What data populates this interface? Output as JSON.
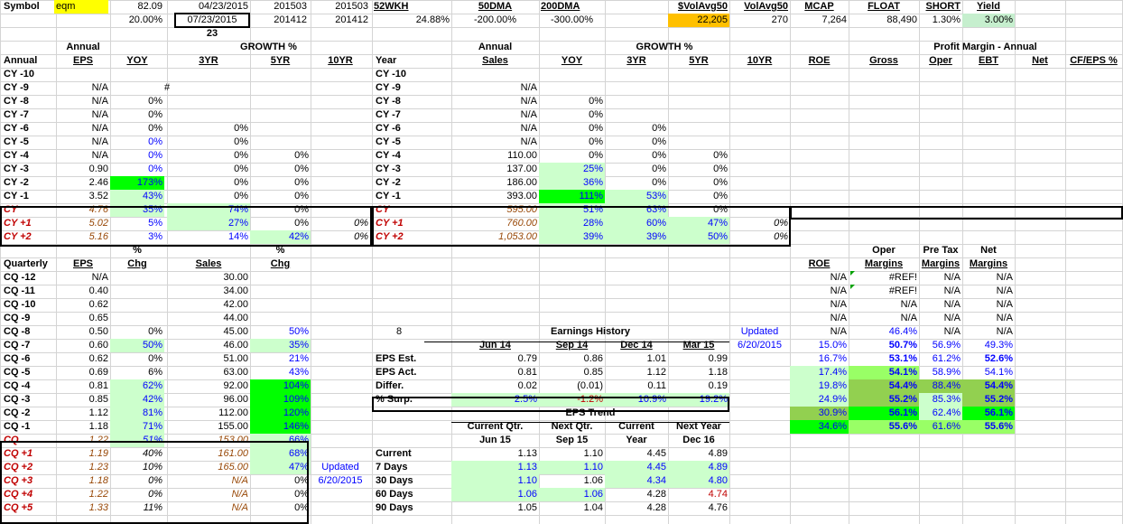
{
  "window": {
    "title": "Stock analysis worksheet"
  },
  "colors": {
    "light_green": "#ccffcc",
    "bright_green": "#00ff00",
    "mid_green": "#92d050",
    "yellow": "#ffff00",
    "orange": "#ffc000",
    "blue_text": "#0000ff",
    "red_text": "#c00000",
    "brown_text": "#984807"
  },
  "header": {
    "symbol_label": "Symbol",
    "symbol_value": "eqm",
    "price": "82.09",
    "date1": "04/23/2015",
    "p1": "201503",
    "p2": "201503",
    "h52wk": "52WKH",
    "h50dma": "50DMA",
    "h200dma": "200DMA",
    "hvolavg": "$VolAvg50",
    "hvolavg2": "VolAvg50",
    "hmcap": "MCAP",
    "hfloat": "FLOAT",
    "hshort": "SHORT",
    "hyield": "Yield",
    "r2pct": "20.00%",
    "date2": "07/23/2015",
    "p3": "201412",
    "p4": "201412",
    "v52wk": "24.88%",
    "v50dma": "-200.00%",
    "v200dma": "-300.00%",
    "vvolavg": "22,205",
    "vvolavg2": "270",
    "vmcap": "7,264",
    "vfloat": "88,490",
    "vshort": "1.30%",
    "vyield": "3.00%",
    "n23": "23"
  },
  "annual_eps": {
    "h_annual": "Annual",
    "h_growth": "GROWTH %",
    "h_col": "Annual",
    "h_eps": "EPS",
    "h_yoy": "YOY",
    "h_3yr": "3YR",
    "h_5yr": "5YR",
    "h_10yr": "10YR",
    "hash": "#",
    "rows": [
      {
        "label": "CY -10",
        "eps": "",
        "yoy": "",
        "y3": "",
        "y5": "",
        "y10": ""
      },
      {
        "label": "CY -9",
        "eps": "N/A",
        "yoy": "",
        "y3": "",
        "y5": "",
        "y10": ""
      },
      {
        "label": "CY -8",
        "eps": "N/A",
        "yoy": "0%",
        "y3": "",
        "y5": "",
        "y10": ""
      },
      {
        "label": "CY -7",
        "eps": "N/A",
        "yoy": "0%",
        "y3": "",
        "y5": "",
        "y10": ""
      },
      {
        "label": "CY -6",
        "eps": "N/A",
        "yoy": "0%",
        "y3": "0%",
        "y5": "",
        "y10": ""
      },
      {
        "label": "CY -5",
        "eps": "N/A",
        "yoy": "0%",
        "y3": "0%",
        "y5": "",
        "y10": ""
      },
      {
        "label": "CY -4",
        "eps": "N/A",
        "yoy": "0%",
        "y3": "0%",
        "y5": "0%",
        "y10": ""
      },
      {
        "label": "CY -3",
        "eps": "0.90",
        "yoy": "0%",
        "y3": "0%",
        "y5": "0%",
        "y10": ""
      },
      {
        "label": "CY -2",
        "eps": "2.46",
        "yoy": "173%",
        "y3": "0%",
        "y5": "0%",
        "y10": ""
      },
      {
        "label": "CY -1",
        "eps": "3.52",
        "yoy": "43%",
        "y3": "0%",
        "y5": "0%",
        "y10": ""
      },
      {
        "label": "CY",
        "eps": "4.76",
        "yoy": "35%",
        "y3": "74%",
        "y5": "0%",
        "y10": ""
      },
      {
        "label": "CY +1",
        "eps": "5.02",
        "yoy": "5%",
        "y3": "27%",
        "y5": "0%",
        "y10": "0%"
      },
      {
        "label": "CY +2",
        "eps": "5.16",
        "yoy": "3%",
        "y3": "14%",
        "y5": "42%",
        "y10": "0%"
      }
    ]
  },
  "annual_sales": {
    "h_annual": "Annual",
    "h_growth": "GROWTH %",
    "h_year": "Year",
    "h_sales": "Sales",
    "h_yoy": "YOY",
    "h_3yr": "3YR",
    "h_5yr": "5YR",
    "h_10yr": "10YR",
    "rows": [
      {
        "label": "CY -10",
        "sales": "",
        "yoy": "",
        "y3": "",
        "y5": "",
        "y10": ""
      },
      {
        "label": "CY -9",
        "sales": "N/A",
        "yoy": "",
        "y3": "",
        "y5": "",
        "y10": ""
      },
      {
        "label": "CY -8",
        "sales": "N/A",
        "yoy": "0%",
        "y3": "",
        "y5": "",
        "y10": ""
      },
      {
        "label": "CY -7",
        "sales": "N/A",
        "yoy": "0%",
        "y3": "",
        "y5": "",
        "y10": ""
      },
      {
        "label": "CY -6",
        "sales": "N/A",
        "yoy": "0%",
        "y3": "0%",
        "y5": "",
        "y10": ""
      },
      {
        "label": "CY -5",
        "sales": "N/A",
        "yoy": "0%",
        "y3": "0%",
        "y5": "",
        "y10": ""
      },
      {
        "label": "CY -4",
        "sales": "110.00",
        "yoy": "0%",
        "y3": "0%",
        "y5": "0%",
        "y10": ""
      },
      {
        "label": "CY -3",
        "sales": "137.00",
        "yoy": "25%",
        "y3": "0%",
        "y5": "0%",
        "y10": ""
      },
      {
        "label": "CY -2",
        "sales": "186.00",
        "yoy": "36%",
        "y3": "0%",
        "y5": "0%",
        "y10": ""
      },
      {
        "label": "CY -1",
        "sales": "393.00",
        "yoy": "111%",
        "y3": "53%",
        "y5": "0%",
        "y10": ""
      },
      {
        "label": "CY",
        "sales": "595.00",
        "yoy": "51%",
        "y3": "63%",
        "y5": "0%",
        "y10": ""
      },
      {
        "label": "CY +1",
        "sales": "760.00",
        "yoy": "28%",
        "y3": "60%",
        "y5": "47%",
        "y10": "0%"
      },
      {
        "label": "CY +2",
        "sales": "1,053.00",
        "yoy": "39%",
        "y3": "39%",
        "y5": "50%",
        "y10": "0%"
      }
    ]
  },
  "profit_margin": {
    "title": "Profit Margin - Annual",
    "h_roe": "ROE",
    "h_gross": "Gross",
    "h_oper": "Oper",
    "h_ebt": "EBT",
    "h_net": "Net",
    "h_cfeps": "CF/EPS %"
  },
  "quarterly": {
    "h_pct1": "%",
    "h_pct2": "%",
    "h_quarterly": "Quarterly",
    "h_eps": "EPS",
    "h_chg": "Chg",
    "h_sales": "Sales",
    "h_chg2": "Chg",
    "rows": [
      {
        "label": "CQ -12",
        "eps": "N/A",
        "chg": "",
        "sales": "30.00",
        "schg": ""
      },
      {
        "label": "CQ -11",
        "eps": "0.40",
        "chg": "",
        "sales": "34.00",
        "schg": ""
      },
      {
        "label": "CQ -10",
        "eps": "0.62",
        "chg": "",
        "sales": "42.00",
        "schg": ""
      },
      {
        "label": "CQ -9",
        "eps": "0.65",
        "chg": "",
        "sales": "44.00",
        "schg": ""
      },
      {
        "label": "CQ -8",
        "eps": "0.50",
        "chg": "0%",
        "sales": "45.00",
        "schg": "50%"
      },
      {
        "label": "CQ -7",
        "eps": "0.60",
        "chg": "50%",
        "sales": "46.00",
        "schg": "35%"
      },
      {
        "label": "CQ -6",
        "eps": "0.62",
        "chg": "0%",
        "sales": "51.00",
        "schg": "21%"
      },
      {
        "label": "CQ -5",
        "eps": "0.69",
        "chg": "6%",
        "sales": "63.00",
        "schg": "43%"
      },
      {
        "label": "CQ -4",
        "eps": "0.81",
        "chg": "62%",
        "sales": "92.00",
        "schg": "104%"
      },
      {
        "label": "CQ -3",
        "eps": "0.85",
        "chg": "42%",
        "sales": "96.00",
        "schg": "109%"
      },
      {
        "label": "CQ -2",
        "eps": "1.12",
        "chg": "81%",
        "sales": "112.00",
        "schg": "120%"
      },
      {
        "label": "CQ -1",
        "eps": "1.18",
        "chg": "71%",
        "sales": "155.00",
        "schg": "146%"
      },
      {
        "label": "CQ",
        "eps": "1.22",
        "chg": "51%",
        "sales": "153.00",
        "schg": "66%"
      },
      {
        "label": "CQ +1",
        "eps": "1.19",
        "chg": "40%",
        "sales": "161.00",
        "schg": "68%"
      },
      {
        "label": "CQ +2",
        "eps": "1.23",
        "chg": "10%",
        "sales": "165.00",
        "schg": "47%"
      },
      {
        "label": "CQ +3",
        "eps": "1.18",
        "chg": "0%",
        "sales": "N/A",
        "schg": "0%"
      },
      {
        "label": "CQ +4",
        "eps": "1.22",
        "chg": "0%",
        "sales": "N/A",
        "schg": "0%"
      },
      {
        "label": "CQ +5",
        "eps": "1.33",
        "chg": "11%",
        "sales": "N/A",
        "schg": "0%"
      }
    ],
    "updated_label": "Updated",
    "updated_date": "6/20/2015"
  },
  "earnings_history": {
    "count": "8",
    "title": "Earnings History",
    "cols": [
      "Jun 14",
      "Sep 14",
      "Dec 14",
      "Mar 15"
    ],
    "rows": [
      {
        "label": "EPS Est.",
        "v": [
          "0.79",
          "0.86",
          "1.01",
          "0.99"
        ]
      },
      {
        "label": "EPS Act.",
        "v": [
          "0.81",
          "0.85",
          "1.12",
          "1.18"
        ]
      },
      {
        "label": "Differ.",
        "v": [
          "0.02",
          "(0.01)",
          "0.11",
          "0.19"
        ]
      },
      {
        "label": "% Surp.",
        "v": [
          "2.5%",
          "-1.2%",
          "10.9%",
          "19.2%"
        ]
      }
    ],
    "updated_label": "Updated",
    "updated_date": "6/20/2015"
  },
  "eps_trend": {
    "title": "EPS Trend",
    "h1a": "Current Qtr.",
    "h2a": "Next Qtr.",
    "h3a": "Current",
    "h4a": "Next Year",
    "h1b": "Jun 15",
    "h2b": "Sep 15",
    "h3b": "Year",
    "h4b": "Dec 16",
    "rows": [
      {
        "label": "Current",
        "v": [
          "1.13",
          "1.10",
          "4.45",
          "4.89"
        ]
      },
      {
        "label": "7 Days",
        "v": [
          "1.13",
          "1.10",
          "4.45",
          "4.89"
        ]
      },
      {
        "label": "30 Days",
        "v": [
          "1.10",
          "1.06",
          "4.34",
          "4.80"
        ]
      },
      {
        "label": "60 Days",
        "v": [
          "1.06",
          "1.06",
          "4.28",
          "4.74"
        ]
      },
      {
        "label": "90 Days",
        "v": [
          "1.05",
          "1.04",
          "4.28",
          "4.76"
        ]
      }
    ]
  },
  "margins": {
    "h_oper1": "Oper",
    "h_pretax1": "Pre Tax",
    "h_net1": "Net",
    "h_roe": "ROE",
    "h_oper2": "Margins",
    "h_pretax2": "Margins",
    "h_net2": "Margins",
    "rows": [
      {
        "roe": "N/A",
        "oper": "#REF!",
        "pretax": "N/A",
        "net": "N/A"
      },
      {
        "roe": "N/A",
        "oper": "#REF!",
        "pretax": "N/A",
        "net": "N/A"
      },
      {
        "roe": "N/A",
        "oper": "N/A",
        "pretax": "N/A",
        "net": "N/A"
      },
      {
        "roe": "N/A",
        "oper": "N/A",
        "pretax": "N/A",
        "net": "N/A"
      },
      {
        "roe": "N/A",
        "oper": "46.4%",
        "pretax": "N/A",
        "net": "N/A"
      },
      {
        "roe": "15.0%",
        "oper": "50.7%",
        "pretax": "56.9%",
        "net": "49.3%"
      },
      {
        "roe": "16.7%",
        "oper": "53.1%",
        "pretax": "61.2%",
        "net": "52.6%"
      },
      {
        "roe": "17.4%",
        "oper": "54.1%",
        "pretax": "58.9%",
        "net": "54.1%"
      },
      {
        "roe": "19.8%",
        "oper": "54.4%",
        "pretax": "88.4%",
        "net": "54.4%"
      },
      {
        "roe": "24.9%",
        "oper": "55.2%",
        "pretax": "85.3%",
        "net": "55.2%"
      },
      {
        "roe": "30.9%",
        "oper": "56.1%",
        "pretax": "62.4%",
        "net": "56.1%"
      },
      {
        "roe": "34.6%",
        "oper": "55.6%",
        "pretax": "61.6%",
        "net": "55.6%"
      }
    ]
  }
}
